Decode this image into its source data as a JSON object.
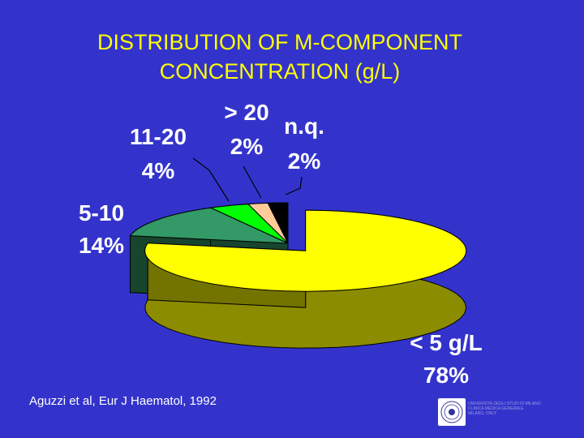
{
  "chart_data": {
    "type": "pie",
    "title": [
      "DISTRIBUTION OF M-COMPONENT",
      "CONCENTRATION (g/L)"
    ],
    "style": "3d-exploded",
    "slices": [
      {
        "label": "< 5 g/L",
        "value": 78,
        "value_label": "78%",
        "color": "#ffff00",
        "exploded": true
      },
      {
        "label": "5-10",
        "value": 14,
        "value_label": "14%",
        "color": "#339966"
      },
      {
        "label": "11-20",
        "value": 4,
        "value_label": "4%",
        "color": "#00ff00"
      },
      {
        "label": "> 20",
        "value": 2,
        "value_label": "2%",
        "color": "#ffcc99"
      },
      {
        "label": "n.q.",
        "value": 2,
        "value_label": "2%",
        "color": "#000000"
      }
    ]
  },
  "citation": "Aguzzi et al, Eur J Haematol, 1992",
  "logo": {
    "lines": [
      "UNIVERSITÀ DEGLI STUDI DI MILANO",
      "CLINICA MEDICA GENERALE",
      "MILANO, ITALY"
    ]
  }
}
